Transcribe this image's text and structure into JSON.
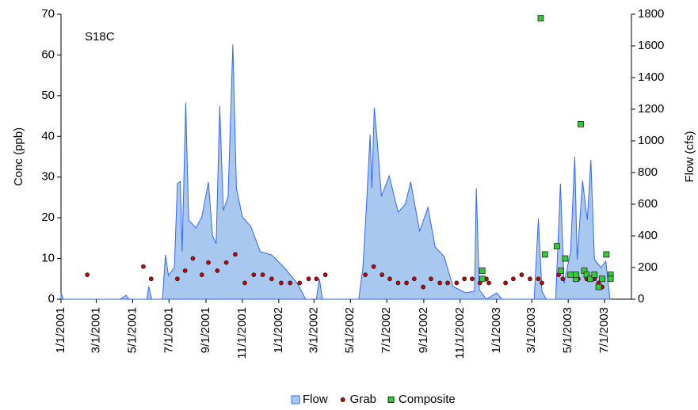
{
  "chart_data": {
    "type": "combo",
    "annotation": "S18C",
    "y_label": "Conc (ppb)",
    "y2_label": "Flow (cfs)",
    "xlim": [
      "1/1/2001",
      "8/15/2003"
    ],
    "xticks": [
      "1/1/2001",
      "3/1/2001",
      "5/1/2001",
      "7/1/2001",
      "9/1/2001",
      "11/1/2001",
      "1/1/2002",
      "3/1/2002",
      "5/1/2002",
      "7/1/2002",
      "9/1/2002",
      "11/1/2002",
      "1/1/2003",
      "3/1/2003",
      "5/1/2003",
      "7/1/2003"
    ],
    "ylim": [
      0,
      70
    ],
    "yticks": [
      0,
      10,
      20,
      30,
      40,
      50,
      60,
      70
    ],
    "y2lim": [
      0,
      1800
    ],
    "y2ticks": [
      0,
      200,
      400,
      600,
      800,
      1000,
      1200,
      1400,
      1600,
      1800
    ],
    "legend": "bottom",
    "series": [
      {
        "name": "Flow",
        "type": "area",
        "axis": "y2",
        "color": "#3366ff",
        "fill": "#a8c8f0",
        "x": [
          "1/1/2001",
          "1/5/2001",
          "4/10/2001",
          "4/20/2001",
          "4/25/2001",
          "5/25/2001",
          "5/28/2001",
          "6/2/2001",
          "6/20/2001",
          "6/25/2001",
          "6/30/2001",
          "7/10/2001",
          "7/15/2001",
          "7/20/2001",
          "7/23/2001",
          "7/29/2001",
          "8/3/2001",
          "8/15/2001",
          "8/25/2001",
          "9/5/2001",
          "9/12/2001",
          "9/18/2001",
          "9/24/2001",
          "9/30/2001",
          "10/8/2001",
          "10/16/2001",
          "10/22/2001",
          "11/1/2001",
          "11/15/2001",
          "12/1/2001",
          "12/20/2001",
          "1/10/2002",
          "2/1/2002",
          "2/15/2002",
          "3/5/2002",
          "3/10/2002",
          "3/15/2002",
          "5/15/2002",
          "5/22/2002",
          "5/28/2002",
          "6/3/2002",
          "6/6/2002",
          "6/10/2002",
          "6/15/2002",
          "6/22/2002",
          "7/5/2002",
          "7/20/2002",
          "8/1/2002",
          "8/10/2002",
          "8/25/2002",
          "9/8/2002",
          "9/20/2002",
          "10/5/2002",
          "10/20/2002",
          "11/10/2002",
          "11/25/2002",
          "11/28/2002",
          "12/3/2002",
          "12/15/2002",
          "1/1/2003",
          "1/10/2003",
          "3/5/2003",
          "3/12/2003",
          "3/18/2003",
          "3/25/2003",
          "4/10/2003",
          "4/18/2003",
          "4/24/2003",
          "5/5/2003",
          "5/12/2003",
          "5/16/2003",
          "5/25/2003",
          "6/2/2003",
          "6/8/2003",
          "6/14/2003",
          "6/25/2003",
          "7/3/2003",
          "7/10/2003"
        ],
        "values": [
          40,
          0,
          0,
          25,
          0,
          0,
          80,
          0,
          0,
          280,
          150,
          200,
          730,
          745,
          300,
          1240,
          500,
          450,
          520,
          740,
          400,
          350,
          1220,
          560,
          650,
          1610,
          700,
          520,
          460,
          300,
          280,
          200,
          100,
          0,
          0,
          130,
          0,
          0,
          200,
          600,
          1040,
          700,
          1210,
          1000,
          650,
          780,
          550,
          600,
          740,
          430,
          580,
          330,
          270,
          80,
          40,
          50,
          700,
          60,
          0,
          40,
          0,
          0,
          510,
          50,
          0,
          0,
          730,
          100,
          300,
          900,
          250,
          750,
          500,
          880,
          250,
          200,
          240,
          0
        ]
      },
      {
        "name": "Grab",
        "type": "scatter",
        "axis": "y",
        "color": "#cc0000",
        "marker": "circle",
        "x": [
          "2/14/2001",
          "5/19/2001",
          "6/1/2001",
          "7/15/2001",
          "7/28/2001",
          "8/10/2001",
          "8/25/2001",
          "9/5/2001",
          "9/20/2001",
          "10/5/2001",
          "10/20/2001",
          "11/5/2001",
          "11/20/2001",
          "12/5/2001",
          "12/20/2001",
          "1/5/2002",
          "1/20/2002",
          "2/5/2002",
          "2/20/2002",
          "3/5/2002",
          "3/20/2002",
          "5/26/2002",
          "6/9/2002",
          "6/23/2002",
          "7/6/2002",
          "7/20/2002",
          "8/3/2002",
          "8/16/2002",
          "8/31/2002",
          "9/13/2002",
          "9/28/2002",
          "10/11/2002",
          "10/26/2002",
          "11/8/2002",
          "11/21/2002",
          "12/4/2002",
          "12/15/2002",
          "12/19/2002",
          "1/16/2003",
          "1/29/2003",
          "2/12/2003",
          "2/26/2003",
          "3/12/2003",
          "3/18/2003",
          "4/15/2003",
          "4/22/2003",
          "5/5/2003",
          "5/18/2003",
          "6/1/2003",
          "6/14/2003",
          "6/21/2003",
          "6/27/2003"
        ],
        "values": [
          6,
          8,
          5,
          5,
          7,
          10,
          6,
          9,
          7,
          9,
          11,
          4,
          6,
          6,
          5,
          4,
          4,
          4,
          5,
          5,
          6,
          6,
          8,
          6,
          5,
          4,
          4,
          5,
          3,
          5,
          4,
          4,
          4,
          5,
          5,
          4,
          5,
          4,
          4,
          5,
          6,
          5,
          5,
          4,
          6,
          5,
          6,
          5,
          5,
          5,
          4,
          3
        ]
      },
      {
        "name": "Composite",
        "type": "scatter",
        "axis": "y",
        "color": "#33cc33",
        "marker": "square",
        "x": [
          "12/8/2002",
          "12/8/2002",
          "3/16/2003",
          "3/23/2003",
          "4/12/2003",
          "4/19/2003",
          "4/26/2003",
          "5/5/2003",
          "5/14/2003",
          "5/14/2003",
          "5/22/2003",
          "5/28/2003",
          "6/1/2003",
          "6/7/2003",
          "6/14/2003",
          "6/21/2003",
          "6/27/2003",
          "7/4/2003",
          "7/11/2003",
          "7/11/2003"
        ],
        "values": [
          7,
          5,
          69,
          11,
          13,
          7,
          10,
          6,
          5,
          6,
          43,
          7,
          6,
          5,
          6,
          3,
          5,
          11,
          6,
          5
        ]
      }
    ]
  }
}
